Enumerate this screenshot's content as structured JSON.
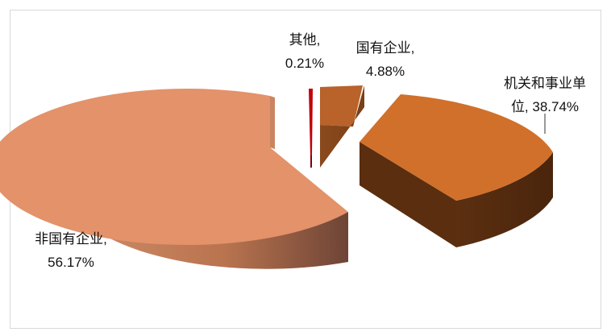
{
  "chart_data": {
    "type": "pie",
    "title": "",
    "slices": [
      {
        "name": "非国有企业",
        "value": 56.17,
        "label_line1": "非国有企业,",
        "label_line2": "56.17%"
      },
      {
        "name": "其他",
        "value": 0.21,
        "label_line1": "其他,",
        "label_line2": "0.21%"
      },
      {
        "name": "国有企业",
        "value": 4.88,
        "label_line1": "国有企业,",
        "label_line2": "4.88%"
      },
      {
        "name": "机关和事业单位",
        "value": 38.74,
        "label_line1": "机关和事业单",
        "label_line2": "位, 38.74%"
      }
    ],
    "colors": {
      "非国有企业": "#e3926a",
      "其他": "#c0000a",
      "国有企业": "#b9622a",
      "机关和事业单位": "#d1702b"
    },
    "style": "3d-exploded",
    "legend": "none"
  }
}
